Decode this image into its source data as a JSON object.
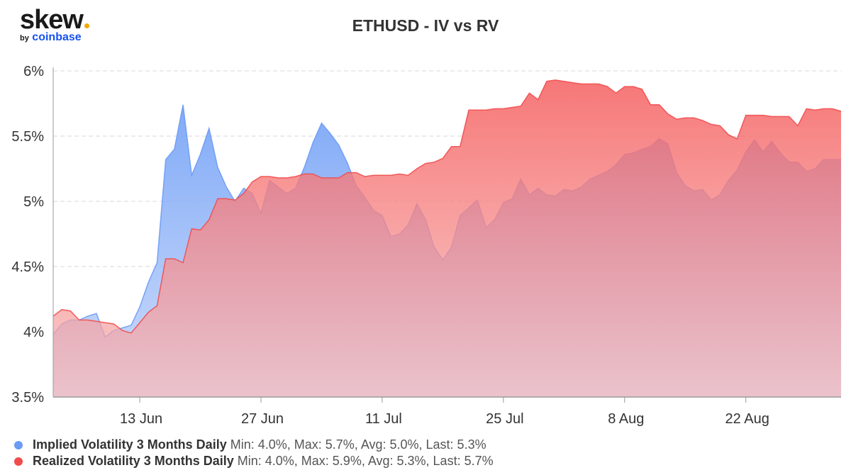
{
  "brand": {
    "name": "skew",
    "by": "by",
    "company": "coinbase",
    "dot_color": "#f2a900",
    "company_color": "#1652f0"
  },
  "chart_data": {
    "type": "area",
    "title": "ETHUSD - IV vs RV",
    "xlabel": "",
    "ylabel": "",
    "ylim": [
      3.5,
      6.0
    ],
    "yticks": [
      3.5,
      4.0,
      4.5,
      5.0,
      5.5,
      6.0
    ],
    "ytick_labels": [
      "3.5%",
      "4%",
      "4.5%",
      "5%",
      "5.5%",
      "6%"
    ],
    "xlim": [
      "2020-06-03",
      "2020-09-02"
    ],
    "xticks": [
      "2020-06-13",
      "2020-06-27",
      "2020-07-11",
      "2020-07-25",
      "2020-08-08",
      "2020-08-22"
    ],
    "xtick_labels": [
      "13 Jun",
      "27 Jun",
      "11 Jul",
      "25 Jul",
      "8 Aug",
      "22 Aug"
    ],
    "grid": true,
    "legend_position": "bottom-left",
    "series": [
      {
        "name": "Implied Volatility 3 Months Daily",
        "color": "#6b9bf5",
        "stats": "Min: 4.0%, Max: 5.7%, Avg: 5.0%, Last: 5.3%",
        "points": [
          [
            "2020-06-03",
            3.98
          ],
          [
            "2020-06-04",
            4.06
          ],
          [
            "2020-06-05",
            4.09
          ],
          [
            "2020-06-06",
            4.09
          ],
          [
            "2020-06-07",
            4.12
          ],
          [
            "2020-06-08",
            4.14
          ],
          [
            "2020-06-09",
            3.96
          ],
          [
            "2020-06-10",
            4.01
          ],
          [
            "2020-06-11",
            4.03
          ],
          [
            "2020-06-12",
            4.05
          ],
          [
            "2020-06-13",
            4.19
          ],
          [
            "2020-06-14",
            4.38
          ],
          [
            "2020-06-15",
            4.53
          ],
          [
            "2020-06-16",
            5.32
          ],
          [
            "2020-06-17",
            5.4
          ],
          [
            "2020-06-18",
            5.74
          ],
          [
            "2020-06-19",
            5.2
          ],
          [
            "2020-06-20",
            5.36
          ],
          [
            "2020-06-21",
            5.56
          ],
          [
            "2020-06-22",
            5.26
          ],
          [
            "2020-06-23",
            5.11
          ],
          [
            "2020-06-24",
            5.0
          ],
          [
            "2020-06-25",
            5.1
          ],
          [
            "2020-06-26",
            5.06
          ],
          [
            "2020-06-27",
            4.91
          ],
          [
            "2020-06-28",
            5.16
          ],
          [
            "2020-06-29",
            5.11
          ],
          [
            "2020-06-30",
            5.06
          ],
          [
            "2020-07-01",
            5.1
          ],
          [
            "2020-07-02",
            5.26
          ],
          [
            "2020-07-03",
            5.45
          ],
          [
            "2020-07-04",
            5.6
          ],
          [
            "2020-07-05",
            5.52
          ],
          [
            "2020-07-06",
            5.43
          ],
          [
            "2020-07-07",
            5.29
          ],
          [
            "2020-07-08",
            5.12
          ],
          [
            "2020-07-09",
            5.03
          ],
          [
            "2020-07-10",
            4.93
          ],
          [
            "2020-07-11",
            4.89
          ],
          [
            "2020-07-12",
            4.73
          ],
          [
            "2020-07-13",
            4.75
          ],
          [
            "2020-07-14",
            4.82
          ],
          [
            "2020-07-15",
            4.98
          ],
          [
            "2020-07-16",
            4.86
          ],
          [
            "2020-07-17",
            4.65
          ],
          [
            "2020-07-18",
            4.55
          ],
          [
            "2020-07-19",
            4.65
          ],
          [
            "2020-07-20",
            4.89
          ],
          [
            "2020-07-21",
            4.95
          ],
          [
            "2020-07-22",
            5.01
          ],
          [
            "2020-07-23",
            4.8
          ],
          [
            "2020-07-24",
            4.86
          ],
          [
            "2020-07-25",
            4.99
          ],
          [
            "2020-07-26",
            5.02
          ],
          [
            "2020-07-27",
            5.17
          ],
          [
            "2020-07-28",
            5.05
          ],
          [
            "2020-07-29",
            5.1
          ],
          [
            "2020-07-30",
            5.05
          ],
          [
            "2020-07-31",
            5.04
          ],
          [
            "2020-08-01",
            5.09
          ],
          [
            "2020-08-02",
            5.08
          ],
          [
            "2020-08-03",
            5.11
          ],
          [
            "2020-08-04",
            5.17
          ],
          [
            "2020-08-05",
            5.2
          ],
          [
            "2020-08-06",
            5.23
          ],
          [
            "2020-08-07",
            5.28
          ],
          [
            "2020-08-08",
            5.36
          ],
          [
            "2020-08-09",
            5.37
          ],
          [
            "2020-08-10",
            5.4
          ],
          [
            "2020-08-11",
            5.42
          ],
          [
            "2020-08-12",
            5.48
          ],
          [
            "2020-08-13",
            5.44
          ],
          [
            "2020-08-14",
            5.22
          ],
          [
            "2020-08-15",
            5.12
          ],
          [
            "2020-08-16",
            5.08
          ],
          [
            "2020-08-17",
            5.09
          ],
          [
            "2020-08-18",
            5.01
          ],
          [
            "2020-08-19",
            5.05
          ],
          [
            "2020-08-20",
            5.16
          ],
          [
            "2020-08-21",
            5.24
          ],
          [
            "2020-08-22",
            5.38
          ],
          [
            "2020-08-23",
            5.47
          ],
          [
            "2020-08-24",
            5.38
          ],
          [
            "2020-08-25",
            5.46
          ],
          [
            "2020-08-26",
            5.37
          ],
          [
            "2020-08-27",
            5.3
          ],
          [
            "2020-08-28",
            5.3
          ],
          [
            "2020-08-29",
            5.23
          ],
          [
            "2020-08-30",
            5.25
          ],
          [
            "2020-08-31",
            5.32
          ],
          [
            "2020-09-01",
            5.32
          ],
          [
            "2020-09-02",
            5.32
          ]
        ]
      },
      {
        "name": "Realized Volatility 3 Months Daily",
        "color": "#f24b4b",
        "stats": "Min: 4.0%, Max: 5.9%, Avg: 5.3%, Last: 5.7%",
        "points": [
          [
            "2020-06-03",
            4.12
          ],
          [
            "2020-06-04",
            4.17
          ],
          [
            "2020-06-05",
            4.16
          ],
          [
            "2020-06-06",
            4.09
          ],
          [
            "2020-06-07",
            4.09
          ],
          [
            "2020-06-08",
            4.08
          ],
          [
            "2020-06-09",
            4.07
          ],
          [
            "2020-06-10",
            4.06
          ],
          [
            "2020-06-11",
            4.01
          ],
          [
            "2020-06-12",
            3.99
          ],
          [
            "2020-06-13",
            4.07
          ],
          [
            "2020-06-14",
            4.15
          ],
          [
            "2020-06-15",
            4.2
          ],
          [
            "2020-06-16",
            4.56
          ],
          [
            "2020-06-17",
            4.56
          ],
          [
            "2020-06-18",
            4.53
          ],
          [
            "2020-06-19",
            4.79
          ],
          [
            "2020-06-20",
            4.78
          ],
          [
            "2020-06-21",
            4.86
          ],
          [
            "2020-06-22",
            5.02
          ],
          [
            "2020-06-23",
            5.02
          ],
          [
            "2020-06-24",
            5.01
          ],
          [
            "2020-06-25",
            5.06
          ],
          [
            "2020-06-26",
            5.15
          ],
          [
            "2020-06-27",
            5.19
          ],
          [
            "2020-06-28",
            5.19
          ],
          [
            "2020-06-29",
            5.18
          ],
          [
            "2020-06-30",
            5.18
          ],
          [
            "2020-07-01",
            5.19
          ],
          [
            "2020-07-02",
            5.21
          ],
          [
            "2020-07-03",
            5.21
          ],
          [
            "2020-07-04",
            5.18
          ],
          [
            "2020-07-05",
            5.18
          ],
          [
            "2020-07-06",
            5.18
          ],
          [
            "2020-07-07",
            5.22
          ],
          [
            "2020-07-08",
            5.22
          ],
          [
            "2020-07-09",
            5.19
          ],
          [
            "2020-07-10",
            5.2
          ],
          [
            "2020-07-11",
            5.2
          ],
          [
            "2020-07-12",
            5.2
          ],
          [
            "2020-07-13",
            5.21
          ],
          [
            "2020-07-14",
            5.2
          ],
          [
            "2020-07-15",
            5.25
          ],
          [
            "2020-07-16",
            5.29
          ],
          [
            "2020-07-17",
            5.3
          ],
          [
            "2020-07-18",
            5.33
          ],
          [
            "2020-07-19",
            5.42
          ],
          [
            "2020-07-20",
            5.42
          ],
          [
            "2020-07-21",
            5.7
          ],
          [
            "2020-07-22",
            5.7
          ],
          [
            "2020-07-23",
            5.7
          ],
          [
            "2020-07-24",
            5.71
          ],
          [
            "2020-07-25",
            5.71
          ],
          [
            "2020-07-26",
            5.72
          ],
          [
            "2020-07-27",
            5.73
          ],
          [
            "2020-07-28",
            5.83
          ],
          [
            "2020-07-29",
            5.78
          ],
          [
            "2020-07-30",
            5.92
          ],
          [
            "2020-07-31",
            5.93
          ],
          [
            "2020-08-01",
            5.92
          ],
          [
            "2020-08-02",
            5.91
          ],
          [
            "2020-08-03",
            5.9
          ],
          [
            "2020-08-04",
            5.9
          ],
          [
            "2020-08-05",
            5.9
          ],
          [
            "2020-08-06",
            5.88
          ],
          [
            "2020-08-07",
            5.83
          ],
          [
            "2020-08-08",
            5.88
          ],
          [
            "2020-08-09",
            5.88
          ],
          [
            "2020-08-10",
            5.86
          ],
          [
            "2020-08-11",
            5.74
          ],
          [
            "2020-08-12",
            5.74
          ],
          [
            "2020-08-13",
            5.67
          ],
          [
            "2020-08-14",
            5.63
          ],
          [
            "2020-08-15",
            5.64
          ],
          [
            "2020-08-16",
            5.64
          ],
          [
            "2020-08-17",
            5.62
          ],
          [
            "2020-08-18",
            5.59
          ],
          [
            "2020-08-19",
            5.58
          ],
          [
            "2020-08-20",
            5.51
          ],
          [
            "2020-08-21",
            5.48
          ],
          [
            "2020-08-22",
            5.66
          ],
          [
            "2020-08-23",
            5.66
          ],
          [
            "2020-08-24",
            5.66
          ],
          [
            "2020-08-25",
            5.65
          ],
          [
            "2020-08-26",
            5.65
          ],
          [
            "2020-08-27",
            5.65
          ],
          [
            "2020-08-28",
            5.58
          ],
          [
            "2020-08-29",
            5.71
          ],
          [
            "2020-08-30",
            5.7
          ],
          [
            "2020-08-31",
            5.71
          ],
          [
            "2020-09-01",
            5.71
          ],
          [
            "2020-09-02",
            5.69
          ]
        ]
      }
    ]
  }
}
